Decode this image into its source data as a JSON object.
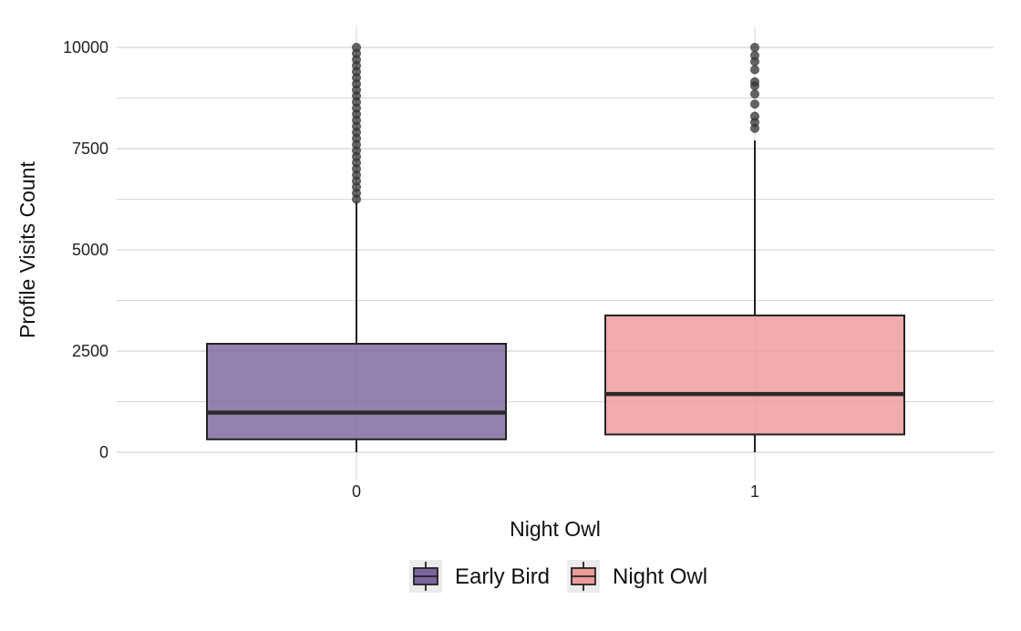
{
  "chart_data": {
    "type": "box",
    "xlabel": "Night Owl",
    "ylabel": "Profile Visits Count",
    "categories": [
      "0",
      "1"
    ],
    "ylim": [
      -700,
      10500
    ],
    "yticks": [
      0,
      2500,
      5000,
      7500,
      10000
    ],
    "grid": true,
    "legend": {
      "position": "bottom",
      "entries": [
        {
          "label": "Early Bird",
          "color": "#7b679d"
        },
        {
          "label": "Night Owl",
          "color": "#ee9a99"
        }
      ]
    },
    "series": [
      {
        "category": "0",
        "color": "#7b679d",
        "min": 0,
        "q1": 320,
        "median": 980,
        "q3": 2680,
        "whisker_high": 6200,
        "outliers": [
          6250,
          6400,
          6550,
          6700,
          6850,
          7000,
          7150,
          7300,
          7450,
          7600,
          7750,
          7900,
          8050,
          8200,
          8350,
          8500,
          8650,
          8800,
          8950,
          9100,
          9250,
          9400,
          9550,
          9700,
          9850,
          10000
        ]
      },
      {
        "category": "1",
        "color": "#ee9a99",
        "min": 0,
        "q1": 440,
        "median": 1440,
        "q3": 3380,
        "whisker_high": 7700,
        "outliers": [
          8000,
          8150,
          8300,
          8600,
          8850,
          9050,
          9150,
          9450,
          9650,
          9800,
          10000
        ]
      }
    ]
  }
}
